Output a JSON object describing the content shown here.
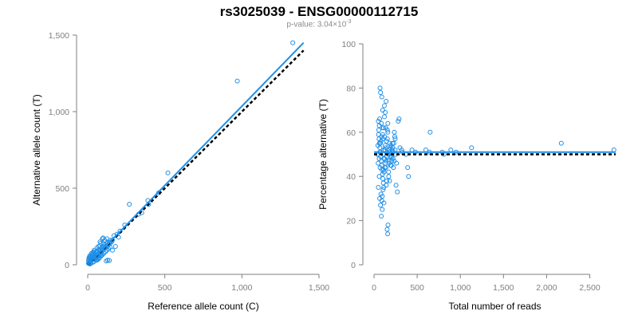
{
  "header": {
    "title": "rs3025039 - ENSG00000112715",
    "pvalue_prefix": "p-value: 3.04×10",
    "pvalue_exponent": "-3"
  },
  "colors": {
    "points": "#1f8fe8",
    "fit": "#1f8fe8",
    "reference": "#000000",
    "axis": "#7f7f7f"
  },
  "chart_data": [
    {
      "type": "scatter",
      "xlabel": "Reference allele count (C)",
      "ylabel": "Alternative allele count (T)",
      "xlim": [
        0,
        1500
      ],
      "ylim": [
        0,
        1500
      ],
      "xticks": [
        0,
        500,
        1000,
        1500
      ],
      "xtick_labels": [
        "0",
        "500",
        "1,000",
        "1,500"
      ],
      "yticks": [
        0,
        500,
        1000,
        1500
      ],
      "ytick_labels": [
        "0",
        "500",
        "1,000",
        "1,500"
      ],
      "points": [
        [
          1330,
          1450
        ],
        [
          970,
          1200
        ],
        [
          520,
          600
        ],
        [
          390,
          420
        ],
        [
          395,
          395
        ],
        [
          270,
          395
        ],
        [
          460,
          470
        ],
        [
          350,
          340
        ],
        [
          330,
          330
        ],
        [
          240,
          260
        ],
        [
          210,
          220
        ],
        [
          190,
          200
        ],
        [
          200,
          180
        ],
        [
          170,
          190
        ],
        [
          150,
          160
        ],
        [
          130,
          150
        ],
        [
          125,
          140
        ],
        [
          110,
          130
        ],
        [
          100,
          120
        ],
        [
          90,
          110
        ],
        [
          95,
          170
        ],
        [
          100,
          175
        ],
        [
          80,
          150
        ],
        [
          85,
          140
        ],
        [
          70,
          100
        ],
        [
          60,
          90
        ],
        [
          55,
          80
        ],
        [
          50,
          70
        ],
        [
          45,
          60
        ],
        [
          40,
          55
        ],
        [
          35,
          50
        ],
        [
          30,
          45
        ],
        [
          25,
          40
        ],
        [
          20,
          35
        ],
        [
          15,
          25
        ],
        [
          10,
          20
        ],
        [
          8,
          15
        ],
        [
          5,
          10
        ],
        [
          12,
          30
        ],
        [
          18,
          45
        ],
        [
          22,
          55
        ],
        [
          28,
          65
        ],
        [
          33,
          75
        ],
        [
          38,
          85
        ],
        [
          42,
          95
        ],
        [
          48,
          60
        ],
        [
          52,
          50
        ],
        [
          58,
          45
        ],
        [
          62,
          55
        ],
        [
          65,
          70
        ],
        [
          70,
          60
        ],
        [
          72,
          40
        ],
        [
          75,
          80
        ],
        [
          78,
          90
        ],
        [
          82,
          70
        ],
        [
          88,
          85
        ],
        [
          92,
          95
        ],
        [
          98,
          100
        ],
        [
          105,
          105
        ],
        [
          112,
          110
        ],
        [
          118,
          120
        ],
        [
          122,
          115
        ],
        [
          128,
          125
        ],
        [
          135,
          130
        ],
        [
          140,
          145
        ],
        [
          145,
          140
        ],
        [
          155,
          150
        ],
        [
          160,
          160
        ],
        [
          120,
          25
        ],
        [
          130,
          30
        ],
        [
          140,
          28
        ],
        [
          160,
          95
        ],
        [
          180,
          120
        ],
        [
          90,
          60
        ],
        [
          60,
          30
        ],
        [
          40,
          20
        ],
        [
          30,
          15
        ],
        [
          20,
          10
        ],
        [
          15,
          5
        ],
        [
          10,
          8
        ],
        [
          50,
          40
        ],
        [
          55,
          30
        ],
        [
          65,
          35
        ],
        [
          75,
          45
        ],
        [
          85,
          55
        ],
        [
          95,
          65
        ],
        [
          105,
          75
        ],
        [
          115,
          85
        ],
        [
          125,
          95
        ],
        [
          135,
          105
        ],
        [
          145,
          115
        ],
        [
          25,
          30
        ],
        [
          35,
          40
        ],
        [
          45,
          48
        ],
        [
          55,
          58
        ],
        [
          65,
          68
        ],
        [
          75,
          74
        ],
        [
          85,
          82
        ],
        [
          30,
          70
        ],
        [
          40,
          80
        ],
        [
          20,
          50
        ],
        [
          10,
          40
        ],
        [
          15,
          60
        ],
        [
          25,
          75
        ],
        [
          5,
          30
        ],
        [
          8,
          45
        ],
        [
          12,
          55
        ],
        [
          100,
          140
        ],
        [
          110,
          160
        ],
        [
          125,
          170
        ],
        [
          60,
          110
        ],
        [
          70,
          120
        ],
        [
          80,
          125
        ]
      ],
      "fit_line": {
        "x": [
          0,
          1400
        ],
        "y": [
          0,
          1450
        ]
      },
      "reference_line": {
        "x": [
          0,
          1400
        ],
        "y": [
          0,
          1400
        ]
      }
    },
    {
      "type": "scatter",
      "xlabel": "Total number of reads",
      "ylabel": "Percentage alternative (T)",
      "xlim": [
        0,
        2800
      ],
      "ylim": [
        0,
        100
      ],
      "xticks": [
        0,
        500,
        1000,
        1500,
        2000,
        2500
      ],
      "xtick_labels": [
        "0",
        "500",
        "1,000",
        "1,500",
        "2,000",
        "2,500"
      ],
      "yticks": [
        0,
        20,
        40,
        60,
        80,
        100
      ],
      "ytick_labels": [
        "0",
        "20",
        "40",
        "60",
        "80",
        "100"
      ],
      "points": [
        [
          2780,
          52
        ],
        [
          2170,
          55
        ],
        [
          1130,
          53
        ],
        [
          950,
          51
        ],
        [
          890,
          52
        ],
        [
          810,
          50
        ],
        [
          790,
          51
        ],
        [
          650,
          60
        ],
        [
          640,
          51
        ],
        [
          600,
          52
        ],
        [
          480,
          51
        ],
        [
          440,
          52
        ],
        [
          400,
          40
        ],
        [
          390,
          44
        ],
        [
          370,
          50
        ],
        [
          330,
          51
        ],
        [
          320,
          52
        ],
        [
          300,
          53
        ],
        [
          280,
          65
        ],
        [
          290,
          66
        ],
        [
          270,
          33
        ],
        [
          260,
          46
        ],
        [
          250,
          50
        ],
        [
          240,
          58
        ],
        [
          230,
          55
        ],
        [
          220,
          48
        ],
        [
          210,
          52
        ],
        [
          200,
          45
        ],
        [
          190,
          53
        ],
        [
          180,
          38
        ],
        [
          170,
          40
        ],
        [
          160,
          60
        ],
        [
          155,
          57
        ],
        [
          150,
          51
        ],
        [
          145,
          49
        ],
        [
          140,
          47
        ],
        [
          135,
          62
        ],
        [
          130,
          54
        ],
        [
          125,
          44
        ],
        [
          120,
          72
        ],
        [
          115,
          42
        ],
        [
          110,
          43
        ],
        [
          105,
          50
        ],
        [
          100,
          70
        ],
        [
          95,
          25
        ],
        [
          90,
          29
        ],
        [
          85,
          64
        ],
        [
          80,
          56
        ],
        [
          75,
          78
        ],
        [
          70,
          80
        ],
        [
          65,
          66
        ],
        [
          60,
          63
        ],
        [
          55,
          61
        ],
        [
          50,
          65
        ],
        [
          52,
          59
        ],
        [
          58,
          57
        ],
        [
          62,
          55
        ],
        [
          68,
          53
        ],
        [
          72,
          51
        ],
        [
          78,
          49
        ],
        [
          82,
          47
        ],
        [
          88,
          45
        ],
        [
          92,
          43
        ],
        [
          98,
          41
        ],
        [
          102,
          39
        ],
        [
          108,
          37
        ],
        [
          112,
          35
        ],
        [
          118,
          48
        ],
        [
          122,
          58
        ],
        [
          128,
          52
        ],
        [
          132,
          46
        ],
        [
          138,
          44
        ],
        [
          142,
          36
        ],
        [
          148,
          38
        ],
        [
          152,
          16
        ],
        [
          158,
          14
        ],
        [
          162,
          18
        ],
        [
          168,
          42
        ],
        [
          172,
          47
        ],
        [
          178,
          52
        ],
        [
          182,
          55
        ],
        [
          188,
          49
        ],
        [
          192,
          45
        ],
        [
          198,
          50
        ],
        [
          205,
          47
        ],
        [
          215,
          53
        ],
        [
          225,
          44
        ],
        [
          235,
          60
        ],
        [
          245,
          57
        ],
        [
          255,
          36
        ],
        [
          40,
          50
        ],
        [
          45,
          54
        ],
        [
          48,
          46
        ],
        [
          60,
          48
        ],
        [
          66,
          51
        ],
        [
          74,
          55
        ],
        [
          86,
          58
        ],
        [
          96,
          62
        ],
        [
          104,
          57
        ],
        [
          114,
          52
        ],
        [
          124,
          48
        ],
        [
          134,
          53
        ],
        [
          144,
          56
        ],
        [
          154,
          61
        ],
        [
          164,
          50
        ],
        [
          174,
          46
        ],
        [
          184,
          51
        ],
        [
          194,
          54
        ],
        [
          204,
          49
        ],
        [
          214,
          55
        ],
        [
          224,
          51
        ],
        [
          234,
          47
        ],
        [
          244,
          52
        ],
        [
          110,
          62
        ],
        [
          120,
          67
        ],
        [
          130,
          69
        ],
        [
          90,
          76
        ],
        [
          140,
          74
        ],
        [
          160,
          64
        ],
        [
          100,
          59
        ],
        [
          60,
          40
        ],
        [
          70,
          44
        ],
        [
          80,
          32
        ],
        [
          50,
          35
        ],
        [
          65,
          30
        ],
        [
          75,
          27
        ],
        [
          85,
          22
        ],
        [
          95,
          31
        ],
        [
          105,
          34
        ],
        [
          115,
          28
        ]
      ],
      "fit_line": {
        "x": [
          0,
          2800
        ],
        "y": [
          51,
          51
        ]
      },
      "reference_line": {
        "x": [
          0,
          2800
        ],
        "y": [
          50,
          50
        ]
      }
    }
  ]
}
